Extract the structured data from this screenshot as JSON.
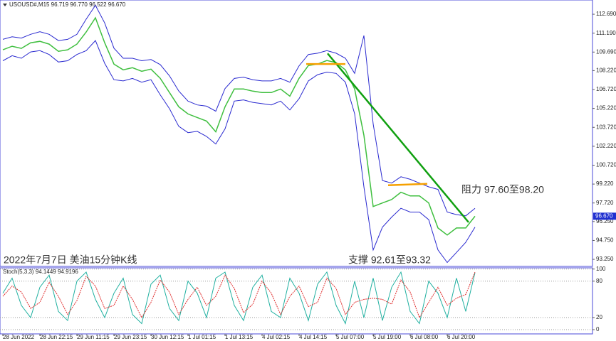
{
  "chart_data": [
    {
      "type": "line",
      "header": "USOUSD#,M15  96.719 96.770 96.522 96.670",
      "caption": "2022年7月7日 美油15分钟K线",
      "annotations": [
        "阻力 97.60至98.20",
        "支撑 92.61至93.32"
      ],
      "last_price": {
        "value": 96.67,
        "label": "96.670"
      },
      "x": [
        0,
        13,
        26,
        39,
        52,
        65,
        78,
        91,
        104,
        117,
        130,
        143,
        156,
        169,
        182,
        195,
        208,
        221,
        234,
        247,
        260,
        273,
        286,
        299,
        312,
        325,
        338,
        351,
        364,
        377,
        390,
        403,
        416,
        429,
        442,
        455,
        468,
        481,
        494,
        507,
        520,
        533,
        546,
        559,
        572,
        585,
        598,
        611,
        624,
        637,
        650,
        663
      ],
      "xlim": [
        -4,
        828
      ],
      "xticks": [
        {
          "value": 0,
          "label": "28 Jun 2022"
        },
        {
          "value": 52,
          "label": "28 Jun 22:15"
        },
        {
          "value": 104,
          "label": "29 Jun 11:15"
        },
        {
          "value": 156,
          "label": "29 Jun 23:15"
        },
        {
          "value": 208,
          "label": "30 Jun 12:15"
        },
        {
          "value": 260,
          "label": "1 Jul 01:15"
        },
        {
          "value": 312,
          "label": "1 Jul 13:15"
        },
        {
          "value": 364,
          "label": "4 Jul 02:15"
        },
        {
          "value": 416,
          "label": "4 Jul 14:15"
        },
        {
          "value": 468,
          "label": "5 Jul 07:00"
        },
        {
          "value": 520,
          "label": "5 Jul 19:00"
        },
        {
          "value": 572,
          "label": "6 Jul 08:00"
        },
        {
          "value": 624,
          "label": "6 Jul 20:00"
        }
      ],
      "ylim": [
        92.69,
        113.82
      ],
      "yticks": [
        {
          "value": 112.69,
          "label": "112.690"
        },
        {
          "value": 111.19,
          "label": "111.190"
        },
        {
          "value": 109.69,
          "label": "109.690"
        },
        {
          "value": 108.22,
          "label": "108.220"
        },
        {
          "value": 106.72,
          "label": "106.720"
        },
        {
          "value": 105.22,
          "label": "105.220"
        },
        {
          "value": 103.72,
          "label": "103.720"
        },
        {
          "value": 102.22,
          "label": "102.220"
        },
        {
          "value": 100.72,
          "label": "100.720"
        },
        {
          "value": 99.22,
          "label": "99.220"
        },
        {
          "value": 97.72,
          "label": "97.720"
        },
        {
          "value": 96.25,
          "label": "96.250"
        },
        {
          "value": 94.75,
          "label": "94.750"
        },
        {
          "value": 93.25,
          "label": "93.250"
        }
      ],
      "series": [
        {
          "color": "#2a2ad0",
          "values": [
            110.7,
            110.9,
            110.8,
            111.1,
            111.3,
            111.1,
            110.6,
            110.7,
            111.1,
            112.3,
            113.4,
            112.0,
            110.0,
            109.2,
            109.2,
            109.0,
            109.1,
            108.7,
            107.8,
            106.6,
            105.8,
            105.5,
            105.4,
            105.0,
            106.8,
            107.6,
            107.7,
            107.5,
            107.4,
            107.4,
            107.6,
            107.3,
            108.6,
            109.5,
            109.6,
            109.8,
            109.6,
            109.2,
            108.0,
            111.0,
            104.0,
            99.5,
            99.3,
            99.8,
            99.6,
            99.3,
            99.0,
            98.8,
            97.0,
            96.8,
            96.7,
            97.3
          ]
        },
        {
          "color": "#2a2ad0",
          "values": [
            109.0,
            109.4,
            109.2,
            109.7,
            109.8,
            109.5,
            108.9,
            109.0,
            109.5,
            109.8,
            110.6,
            108.8,
            107.5,
            107.4,
            107.6,
            107.3,
            107.5,
            106.3,
            105.2,
            103.8,
            103.3,
            103.4,
            103.0,
            102.4,
            103.6,
            105.8,
            105.9,
            105.7,
            105.6,
            105.5,
            105.8,
            105.1,
            106.0,
            107.4,
            107.9,
            108.1,
            108.0,
            107.3,
            104.8,
            99.0,
            94.0,
            95.8,
            96.6,
            97.3,
            97.0,
            97.0,
            96.4,
            94.0,
            93.0,
            93.8,
            94.6,
            95.8
          ]
        },
        {
          "color": "#3fbf3f",
          "values": [
            109.87,
            110.15,
            109.98,
            110.43,
            110.54,
            110.32,
            109.75,
            109.87,
            110.32,
            111.28,
            112.41,
            110.43,
            108.74,
            108.28,
            108.45,
            108.17,
            108.34,
            107.61,
            106.48,
            105.35,
            104.78,
            104.5,
            104.22,
            103.37,
            105.35,
            106.76,
            106.76,
            106.59,
            106.48,
            106.48,
            106.76,
            106.19,
            107.61,
            108.62,
            108.74,
            109.02,
            108.85,
            108.28,
            106.76,
            103.09,
            97.44,
            97.72,
            98.0,
            98.57,
            98.28,
            98.28,
            97.72,
            95.74,
            95.18,
            95.74,
            95.74,
            96.67
          ]
        }
      ],
      "lines": [
        {
          "color": "#10a010",
          "x": [
            456,
            654
          ],
          "y": [
            109.58,
            96.19
          ]
        },
        {
          "color": "#f5a000",
          "x": [
            426,
            481
          ],
          "y": [
            108.74,
            108.74
          ]
        },
        {
          "color": "#f5a000",
          "x": [
            541,
            596
          ],
          "y": [
            99.13,
            99.24
          ]
        }
      ]
    },
    {
      "type": "line",
      "title": "Stoch(5,3,3) 94.1449 94.9196",
      "x": [
        0,
        13,
        26,
        39,
        52,
        65,
        78,
        91,
        104,
        117,
        130,
        143,
        156,
        169,
        182,
        195,
        208,
        221,
        234,
        247,
        260,
        273,
        286,
        299,
        312,
        325,
        338,
        351,
        364,
        377,
        390,
        403,
        416,
        429,
        442,
        455,
        468,
        481,
        494,
        507,
        520,
        533,
        546,
        559,
        572,
        585,
        598,
        611,
        624,
        637,
        650,
        663
      ],
      "xlim": [
        -4,
        828
      ],
      "ylim": [
        -7,
        102
      ],
      "yticks": [
        100,
        80,
        20,
        0
      ],
      "series": [
        {
          "color": "#20b0a0",
          "values": [
            60,
            85,
            40,
            20,
            70,
            90,
            30,
            15,
            80,
            95,
            50,
            20,
            60,
            85,
            25,
            10,
            75,
            90,
            35,
            15,
            80,
            60,
            20,
            85,
            95,
            40,
            15,
            70,
            90,
            30,
            20,
            85,
            60,
            15,
            75,
            95,
            40,
            10,
            80,
            20,
            85,
            15,
            70,
            95,
            30,
            10,
            80,
            60,
            20,
            85,
            30,
            94.14
          ]
        },
        {
          "color": "#e03030",
          "dashed": true,
          "values": [
            55,
            72,
            62,
            35,
            45,
            78,
            55,
            25,
            48,
            88,
            72,
            35,
            40,
            72,
            50,
            20,
            45,
            82,
            62,
            25,
            50,
            70,
            40,
            55,
            90,
            68,
            28,
            42,
            80,
            60,
            25,
            55,
            72,
            38,
            45,
            85,
            68,
            25,
            45,
            50,
            52,
            50,
            42,
            82,
            62,
            20,
            45,
            70,
            40,
            52,
            58,
            94.92
          ]
        }
      ]
    }
  ]
}
